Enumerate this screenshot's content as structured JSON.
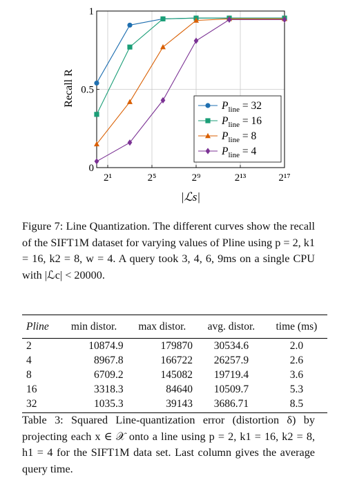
{
  "figure": {
    "caption": "Figure 7: Line Quantization. The different curves show the recall of the SIFT1M dataset for varying values of Pline using p = 2, k1 = 16, k2 = 8, w = 4. A query took 3, 4, 6, 9ms on a single CPU with |ℒc| < 20000."
  },
  "chart_data": {
    "type": "line",
    "xlabel": "|ℒs|",
    "ylabel": "Recall R",
    "x_scale": "log2",
    "x_ticks": [
      {
        "value": 2,
        "label": "2¹"
      },
      {
        "value": 32,
        "label": "2⁵"
      },
      {
        "value": 512,
        "label": "2⁹"
      },
      {
        "value": 8192,
        "label": "2¹³"
      },
      {
        "value": 131072,
        "label": "2¹⁷"
      }
    ],
    "y_ticks": [
      {
        "value": 0,
        "label": "0"
      },
      {
        "value": 0.5,
        "label": "0.5"
      },
      {
        "value": 1,
        "label": "1"
      }
    ],
    "xlim": [
      1,
      131072
    ],
    "ylim": [
      0,
      1
    ],
    "grid": true,
    "legend_position": "bottom-right",
    "x": [
      1,
      8,
      64,
      512,
      4096,
      131072
    ],
    "series": [
      {
        "name": "Pline = 32",
        "marker": "circle",
        "color": "#1f6fb0",
        "values": [
          0.54,
          0.91,
          0.95,
          0.955,
          0.955,
          0.955
        ]
      },
      {
        "name": "Pline = 16",
        "marker": "square",
        "color": "#1b9e77",
        "values": [
          0.34,
          0.77,
          0.95,
          0.955,
          0.955,
          0.955
        ]
      },
      {
        "name": "Pline = 8",
        "marker": "triangle",
        "color": "#d95f02",
        "values": [
          0.15,
          0.42,
          0.77,
          0.94,
          0.95,
          0.95
        ]
      },
      {
        "name": "Pline = 4",
        "marker": "diamond",
        "color": "#7b3294",
        "values": [
          0.04,
          0.16,
          0.43,
          0.81,
          0.945,
          0.945
        ]
      }
    ]
  },
  "table": {
    "headers": [
      "Pline",
      "min distor.",
      "max distor.",
      "avg. distor.",
      "time (ms)"
    ],
    "rows": [
      [
        "2",
        "10874.9",
        "179870",
        "30534.6",
        "2.0"
      ],
      [
        "4",
        "8967.8",
        "166722",
        "26257.9",
        "2.6"
      ],
      [
        "8",
        "6709.2",
        "145082",
        "19719.4",
        "3.6"
      ],
      [
        "16",
        "3318.3",
        "84640",
        "10509.7",
        "5.3"
      ],
      [
        "32",
        "1035.3",
        "39143",
        "3686.71",
        "8.5"
      ]
    ],
    "caption": "Table 3: Squared Line-quantization error (distortion δ) by projecting each x ∈ 𝒳 onto a line using p = 2, k1 = 16, k2 = 8, h1 = 4 for the SIFT1M data set. Last column gives the average query time."
  }
}
